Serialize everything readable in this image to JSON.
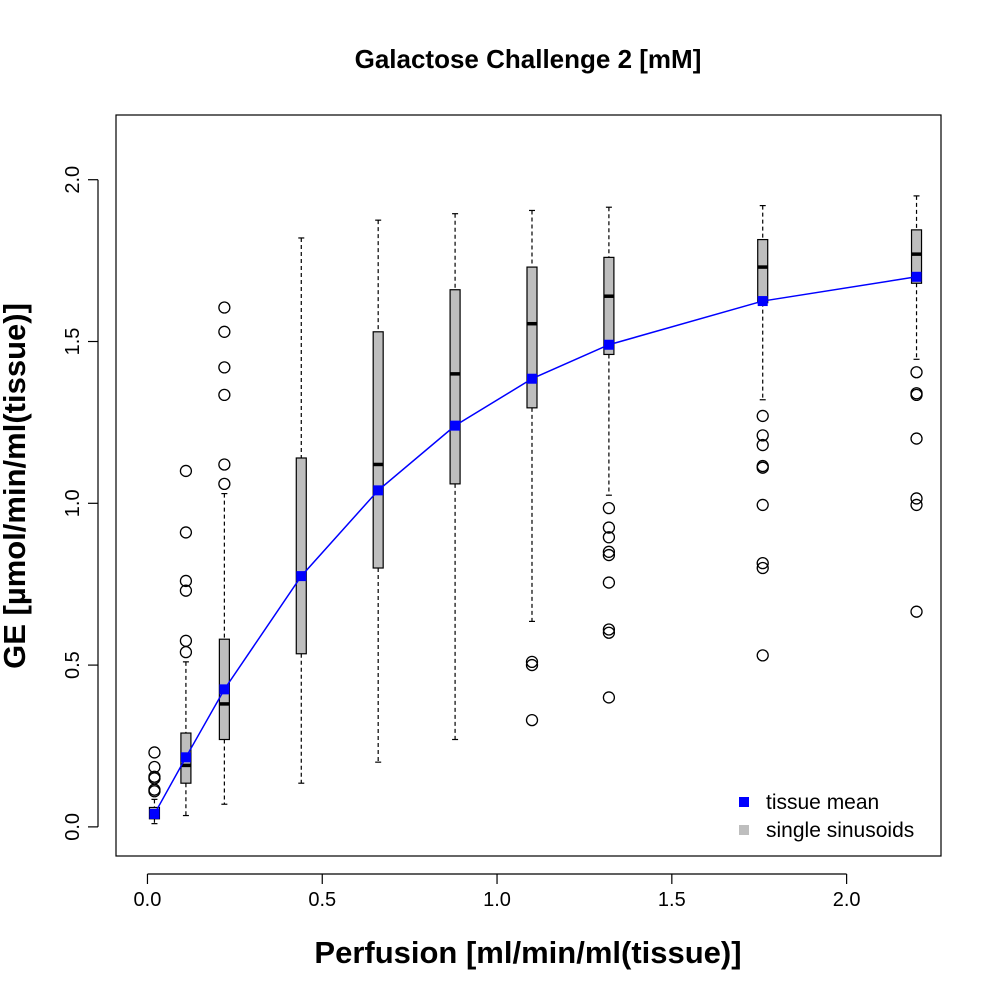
{
  "chart_data": {
    "type": "box",
    "title": "Galactose Challenge 2 [mM]",
    "xlabel": "Perfusion [ml/min/ml(tissue)]",
    "ylabel": "GE [µmol/min/ml(tissue)]",
    "xlim": [
      -0.09,
      2.27
    ],
    "ylim": [
      -0.09,
      2.2
    ],
    "xticks": [
      0.0,
      0.5,
      1.0,
      1.5,
      2.0
    ],
    "xtick_labels": [
      "0.0",
      "0.5",
      "1.0",
      "1.5",
      "2.0"
    ],
    "yticks": [
      0.0,
      0.5,
      1.0,
      1.5,
      2.0
    ],
    "ytick_labels": [
      "0.0",
      "0.5",
      "1.0",
      "1.5",
      "2.0"
    ],
    "grid": false,
    "legend": {
      "position": "bottom-right",
      "entries": [
        {
          "label": "tissue mean",
          "color": "#0000ff"
        },
        {
          "label": "single sinusoids",
          "color": "#bebebe"
        }
      ]
    },
    "colors": {
      "mean": "#0000ff",
      "box": "#bebebe"
    },
    "boxes": [
      {
        "x": 0.02,
        "whisker_low": 0.01,
        "q1": 0.025,
        "median": 0.04,
        "q3": 0.06,
        "whisker_high": 0.085,
        "outliers": [
          0.11,
          0.115,
          0.15,
          0.155,
          0.185,
          0.23
        ]
      },
      {
        "x": 0.11,
        "whisker_low": 0.035,
        "q1": 0.135,
        "median": 0.19,
        "q3": 0.29,
        "whisker_high": 0.51,
        "outliers": [
          0.54,
          0.575,
          0.73,
          0.76,
          0.91,
          1.1
        ]
      },
      {
        "x": 0.22,
        "whisker_low": 0.07,
        "q1": 0.27,
        "median": 0.38,
        "q3": 0.58,
        "whisker_high": 1.03,
        "outliers": [
          1.06,
          1.12,
          1.335,
          1.42,
          1.53,
          1.605
        ]
      },
      {
        "x": 0.44,
        "whisker_low": 0.135,
        "q1": 0.535,
        "median": 0.78,
        "q3": 1.14,
        "whisker_high": 1.82,
        "outliers": []
      },
      {
        "x": 0.66,
        "whisker_low": 0.2,
        "q1": 0.8,
        "median": 1.12,
        "q3": 1.53,
        "whisker_high": 1.875,
        "outliers": []
      },
      {
        "x": 0.88,
        "whisker_low": 0.27,
        "q1": 1.06,
        "median": 1.4,
        "q3": 1.66,
        "whisker_high": 1.895,
        "outliers": []
      },
      {
        "x": 1.1,
        "whisker_low": 0.635,
        "q1": 1.295,
        "median": 1.555,
        "q3": 1.73,
        "whisker_high": 1.905,
        "outliers": [
          0.33,
          0.5,
          0.51
        ]
      },
      {
        "x": 1.32,
        "whisker_low": 1.025,
        "q1": 1.46,
        "median": 1.64,
        "q3": 1.76,
        "whisker_high": 1.915,
        "outliers": [
          0.4,
          0.6,
          0.61,
          0.755,
          0.84,
          0.85,
          0.895,
          0.925,
          0.985
        ]
      },
      {
        "x": 1.76,
        "whisker_low": 1.32,
        "q1": 1.62,
        "median": 1.73,
        "q3": 1.815,
        "whisker_high": 1.92,
        "outliers": [
          0.53,
          0.8,
          0.815,
          0.995,
          1.11,
          1.115,
          1.18,
          1.21,
          1.27
        ]
      },
      {
        "x": 2.2,
        "whisker_low": 1.445,
        "q1": 1.68,
        "median": 1.77,
        "q3": 1.845,
        "whisker_high": 1.95,
        "outliers": [
          0.665,
          0.995,
          1.015,
          1.2,
          1.335,
          1.34,
          1.405
        ]
      }
    ],
    "series": [
      {
        "name": "tissue mean",
        "type": "line",
        "x": [
          0.02,
          0.11,
          0.22,
          0.44,
          0.66,
          0.88,
          1.1,
          1.32,
          1.76,
          2.2
        ],
        "y": [
          0.04,
          0.215,
          0.425,
          0.775,
          1.04,
          1.24,
          1.385,
          1.49,
          1.625,
          1.7
        ]
      }
    ]
  }
}
